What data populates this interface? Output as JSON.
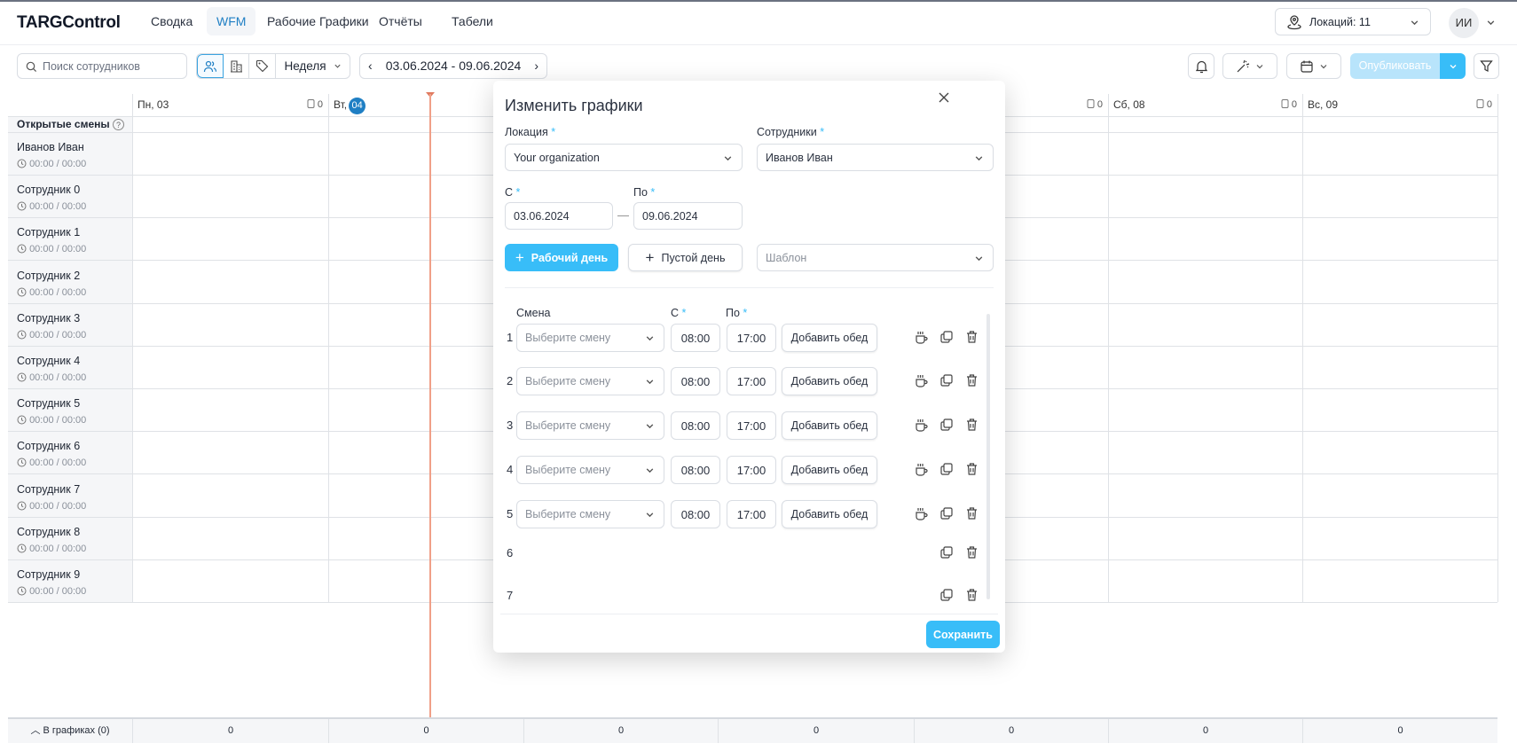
{
  "app": {
    "logo": "TARGControl"
  },
  "nav": [
    {
      "label": "Сводка"
    },
    {
      "label": "WFM",
      "active": true
    },
    {
      "label": "Рабочие Графики"
    },
    {
      "label": "Отчёты"
    },
    {
      "label": "Табели"
    }
  ],
  "header": {
    "locations": "Локаций: 11",
    "avatar": "ИИ"
  },
  "toolbar": {
    "search_placeholder": "Поиск сотрудников",
    "view": "Неделя",
    "date_range": "03.06.2024 - 09.06.2024",
    "publish": "Опубликовать"
  },
  "grid": {
    "days": [
      {
        "label": "Пн, 03",
        "count": "0"
      },
      {
        "label": "Вт,",
        "day": "04",
        "count": ""
      },
      {
        "label": "",
        "count": ""
      },
      {
        "label": "",
        "count": ""
      },
      {
        "label": "",
        "count": "0"
      },
      {
        "label": "Сб, 08",
        "count": "0"
      },
      {
        "label": "Вс, 09",
        "count": "0"
      }
    ],
    "open_shifts": "Открытые смены",
    "employees": [
      {
        "name": "Иванов Иван",
        "time": "00:00 / 00:00"
      },
      {
        "name": "Сотрудник 0",
        "time": "00:00 / 00:00"
      },
      {
        "name": "Сотрудник 1",
        "time": "00:00 / 00:00"
      },
      {
        "name": "Сотрудник 2",
        "time": "00:00 / 00:00"
      },
      {
        "name": "Сотрудник 3",
        "time": "00:00 / 00:00"
      },
      {
        "name": "Сотрудник 4",
        "time": "00:00 / 00:00"
      },
      {
        "name": "Сотрудник 5",
        "time": "00:00 / 00:00"
      },
      {
        "name": "Сотрудник 6",
        "time": "00:00 / 00:00"
      },
      {
        "name": "Сотрудник 7",
        "time": "00:00 / 00:00"
      },
      {
        "name": "Сотрудник 8",
        "time": "00:00 / 00:00"
      },
      {
        "name": "Сотрудник 9",
        "time": "00:00 / 00:00"
      }
    ],
    "footer_label": "В графиках (0)",
    "footer_totals": [
      "0",
      "0",
      "0",
      "0",
      "0",
      "0",
      "0"
    ]
  },
  "modal": {
    "title": "Изменить графики",
    "location_label": "Локация",
    "location_value": "Your organization",
    "employees_label": "Сотрудники",
    "employees_value": "Иванов Иван",
    "from_label": "С",
    "from_value": "03.06.2024",
    "to_label": "По",
    "to_value": "09.06.2024",
    "dash": "—",
    "work_day": "Рабочий день",
    "empty_day": "Пустой день",
    "template_placeholder": "Шаблон",
    "col_shift": "Смена",
    "col_from": "С",
    "col_to": "По",
    "rows": [
      {
        "n": "1",
        "shift": "Выберите смену",
        "from": "08:00",
        "to": "17:00",
        "lunch": "Добавить обед"
      },
      {
        "n": "2",
        "shift": "Выберите смену",
        "from": "08:00",
        "to": "17:00",
        "lunch": "Добавить обед"
      },
      {
        "n": "3",
        "shift": "Выберите смену",
        "from": "08:00",
        "to": "17:00",
        "lunch": "Добавить обед"
      },
      {
        "n": "4",
        "shift": "Выберите смену",
        "from": "08:00",
        "to": "17:00",
        "lunch": "Добавить обед"
      },
      {
        "n": "5",
        "shift": "Выберите смену",
        "from": "08:00",
        "to": "17:00",
        "lunch": "Добавить обед"
      },
      {
        "n": "6"
      },
      {
        "n": "7"
      }
    ],
    "save": "Сохранить"
  },
  "colors": {
    "accent": "#38bdf8",
    "brand_blue": "#1f7fc4",
    "now_line": "#f0a088"
  }
}
